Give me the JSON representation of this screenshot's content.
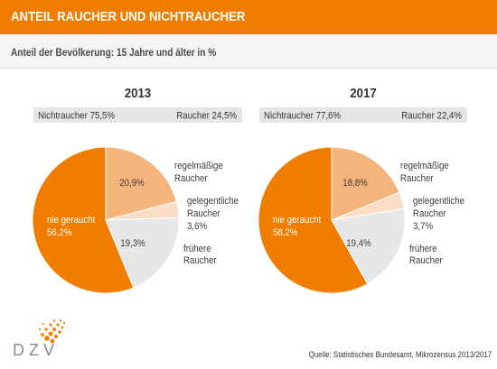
{
  "header": {
    "title": "ANTEIL RAUCHER UND NICHTRAUCHER"
  },
  "subtitle": "Anteil der Bevölkerung: 15 Jahre und älter in %",
  "colors": {
    "header": "#F07D00",
    "summary_bar": "#E6E6E6"
  },
  "chart_data": [
    {
      "type": "pie",
      "title": "2013",
      "summary": [
        {
          "label": "Nichtraucher",
          "value": 75.5,
          "value_label": "75,5%"
        },
        {
          "label": "Raucher",
          "value": 24.5,
          "value_label": "24,5%"
        }
      ],
      "slices": [
        {
          "label_lines": [
            "regelmäßige",
            "Raucher"
          ],
          "value": 20.9,
          "value_label": "20,9%",
          "color": "#F5B47C"
        },
        {
          "label_lines": [
            "gelegentliche",
            "Raucher"
          ],
          "value": 3.6,
          "value_label": "3,6%",
          "color": "#FBDDC6"
        },
        {
          "label_lines": [
            "frühere",
            "Raucher"
          ],
          "value": 19.3,
          "value_label": "19,3%",
          "color": "#E7E7E7"
        },
        {
          "label_lines": [
            "nie geraucht"
          ],
          "value": 56.2,
          "value_label": "56,2%",
          "color": "#F07D00"
        }
      ]
    },
    {
      "type": "pie",
      "title": "2017",
      "summary": [
        {
          "label": "Nichtraucher",
          "value": 77.6,
          "value_label": "77,6%"
        },
        {
          "label": "Raucher",
          "value": 22.4,
          "value_label": "22,4%"
        }
      ],
      "slices": [
        {
          "label_lines": [
            "regelmäßige",
            "Raucher"
          ],
          "value": 18.8,
          "value_label": "18,8%",
          "color": "#F5B47C"
        },
        {
          "label_lines": [
            "gelegentliche",
            "Raucher"
          ],
          "value": 3.7,
          "value_label": "3,7%",
          "color": "#FBDDC6"
        },
        {
          "label_lines": [
            "frühere",
            "Raucher"
          ],
          "value": 19.4,
          "value_label": "19,4%",
          "color": "#E7E7E7"
        },
        {
          "label_lines": [
            "nie geraucht"
          ],
          "value": 58.2,
          "value_label": "58,2%",
          "color": "#F07D00"
        }
      ]
    }
  ],
  "footer": {
    "logo_text": "DZV",
    "source": "Quelle: Statistisches Bundesamt, Mikrozensus 2013/2017"
  }
}
